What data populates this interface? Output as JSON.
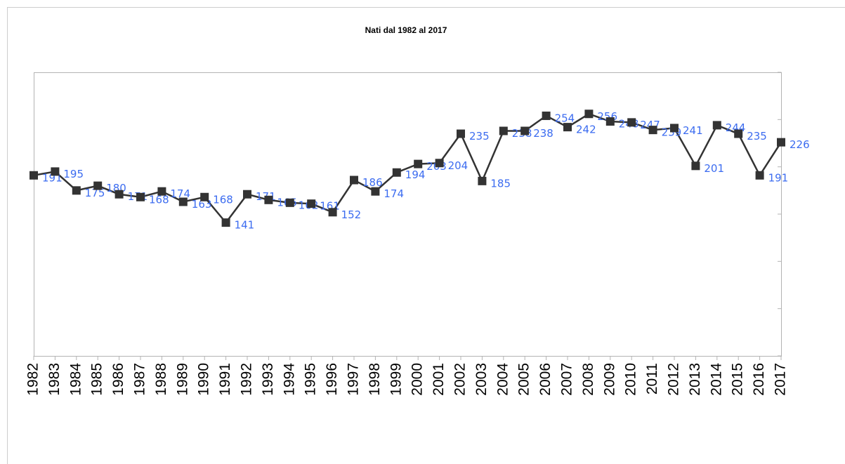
{
  "chart_data": {
    "type": "line",
    "title": "Nati dal 1982 al 2017",
    "categories": [
      "1982",
      "1983",
      "1984",
      "1985",
      "1986",
      "1987",
      "1988",
      "1989",
      "1990",
      "1991",
      "1992",
      "1993",
      "1994",
      "1995",
      "1996",
      "1997",
      "1998",
      "1999",
      "2000",
      "2001",
      "2002",
      "2003",
      "2004",
      "2005",
      "2006",
      "2007",
      "2008",
      "2009",
      "2010",
      "2011",
      "2012",
      "2013",
      "2014",
      "2015",
      "2016",
      "2017"
    ],
    "values": [
      191,
      195,
      175,
      180,
      171,
      168,
      174,
      163,
      168,
      141,
      171,
      165,
      162,
      161,
      152,
      186,
      174,
      194,
      203,
      204,
      235,
      185,
      238,
      238,
      254,
      242,
      256,
      248,
      247,
      239,
      241,
      201,
      244,
      235,
      191,
      226
    ],
    "color": "#333333",
    "label_color": "#3c6cf0",
    "ylim": [
      0,
      300
    ],
    "yticks": [
      0,
      50,
      100,
      150,
      200,
      250,
      300
    ]
  }
}
